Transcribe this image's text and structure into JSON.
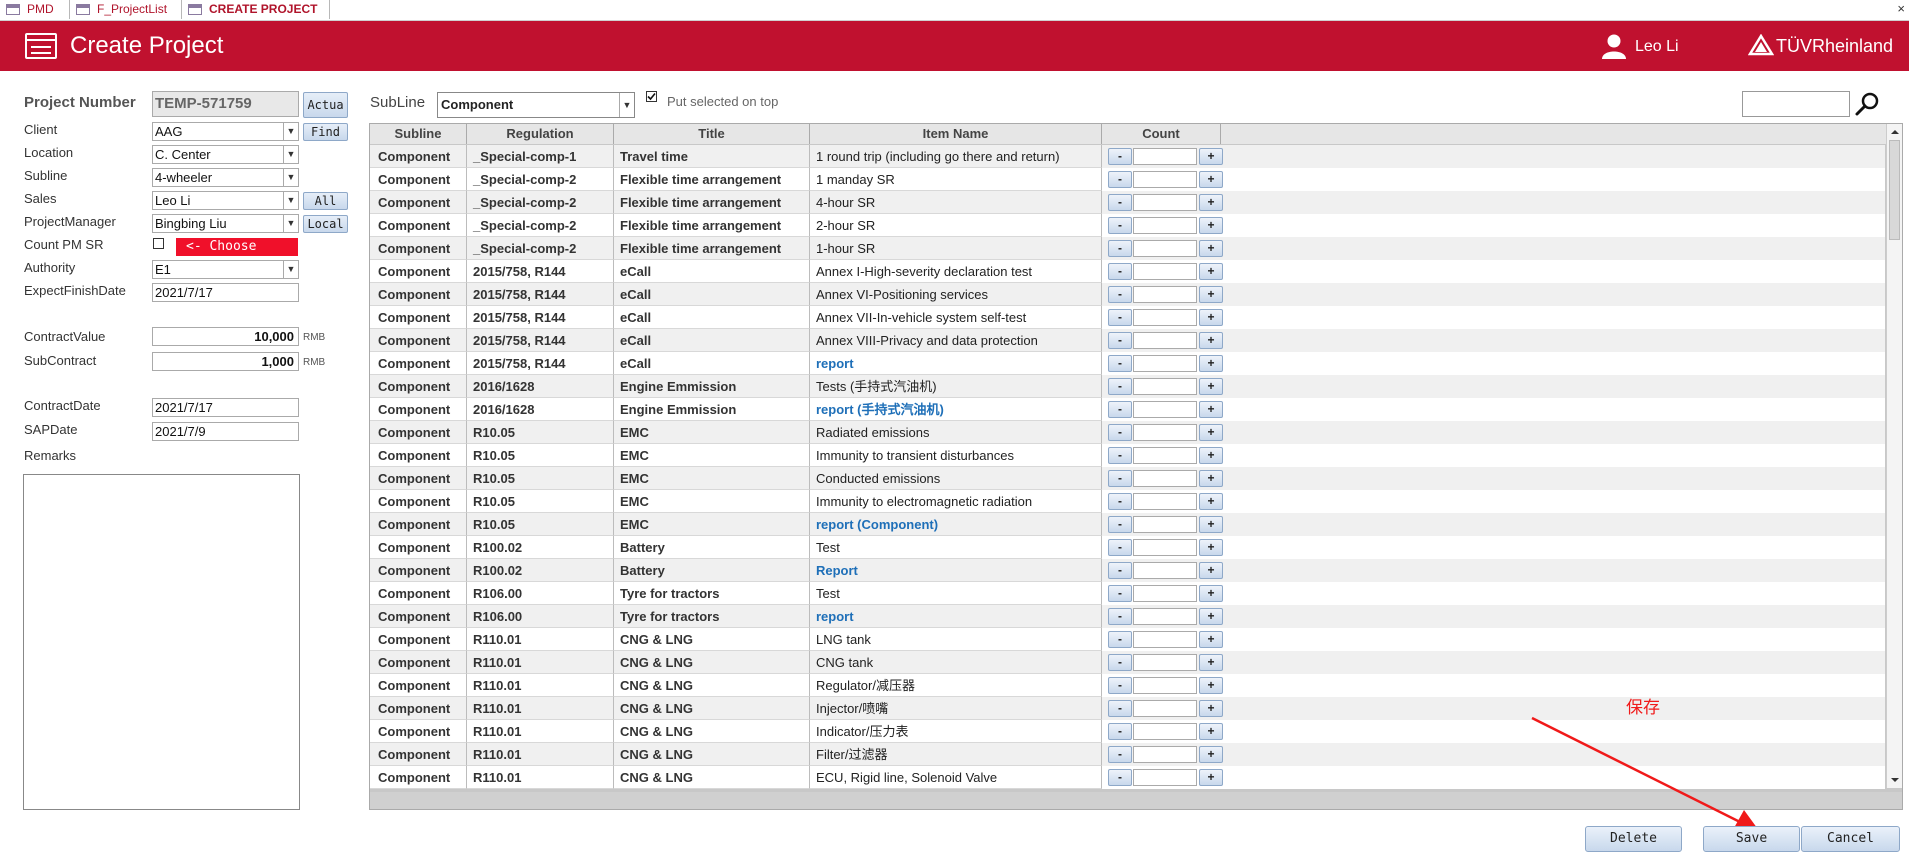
{
  "tabs": [
    {
      "label": "PMD"
    },
    {
      "label": "F_ProjectList"
    },
    {
      "label": "CREATE PROJECT"
    }
  ],
  "tab_close": "×",
  "header": {
    "title": "Create Project",
    "user_name": "Leo Li",
    "brand": "TÜVRheinland",
    "background_color": "#c0112f"
  },
  "form": {
    "project_number_label": "Project Number",
    "project_number_value": "TEMP-571759",
    "actual_button": "Actua",
    "client_label": "Client",
    "client_value": "AAG",
    "find_button": "Find",
    "location_label": "Location",
    "location_value": "C. Center",
    "subline_label": "Subline",
    "subline_value": "4-wheeler",
    "sales_label": "Sales",
    "sales_value": "Leo Li",
    "all_button": "All",
    "pm_label": "ProjectManager",
    "pm_value": "Bingbing Liu",
    "local_button": "Local",
    "count_pm_sr_label": "Count PM SR",
    "choose_hint": "<- Choose",
    "authority_label": "Authority",
    "authority_value": "E1",
    "expect_finish_label": "ExpectFinishDate",
    "expect_finish_value": "2021/7/17",
    "contract_value_label": "ContractValue",
    "contract_value": "10,000",
    "contract_unit": "RMB",
    "subcontract_label": "SubContract",
    "subcontract_value": "1,000",
    "subcontract_unit": "RMB",
    "contract_date_label": "ContractDate",
    "contract_date_value": "2021/7/17",
    "sap_date_label": "SAPDate",
    "sap_date_value": "2021/7/9",
    "remarks_label": "Remarks"
  },
  "filter": {
    "subline_label": "SubLine",
    "subline_value": "Component",
    "put_selected_label": "Put selected on top",
    "put_selected_checked": true
  },
  "table": {
    "columns": [
      "Subline",
      "Regulation",
      "Title",
      "Item Name",
      "Count"
    ],
    "minus": "-",
    "plus": "+",
    "rows": [
      {
        "subline": "Component",
        "regulation": "_Special-comp-1",
        "title": "Travel time",
        "item": "1 round trip (including go there and return)",
        "link": false
      },
      {
        "subline": "Component",
        "regulation": "_Special-comp-2",
        "title": "Flexible time arrangement",
        "item": "1 manday SR",
        "link": false
      },
      {
        "subline": "Component",
        "regulation": "_Special-comp-2",
        "title": "Flexible time arrangement",
        "item": "4-hour SR",
        "link": false
      },
      {
        "subline": "Component",
        "regulation": "_Special-comp-2",
        "title": "Flexible time arrangement",
        "item": "2-hour SR",
        "link": false
      },
      {
        "subline": "Component",
        "regulation": "_Special-comp-2",
        "title": "Flexible time arrangement",
        "item": "1-hour SR",
        "link": false
      },
      {
        "subline": "Component",
        "regulation": "2015/758, R144",
        "title": "eCall",
        "item": "Annex I-High-severity declaration test",
        "link": false
      },
      {
        "subline": "Component",
        "regulation": "2015/758, R144",
        "title": "eCall",
        "item": "Annex VI-Positioning services",
        "link": false
      },
      {
        "subline": "Component",
        "regulation": "2015/758, R144",
        "title": "eCall",
        "item": "Annex VII-In-vehicle system self-test",
        "link": false
      },
      {
        "subline": "Component",
        "regulation": "2015/758, R144",
        "title": "eCall",
        "item": "Annex VIII-Privacy and data protection",
        "link": false
      },
      {
        "subline": "Component",
        "regulation": "2015/758, R144",
        "title": "eCall",
        "item": "report",
        "link": true
      },
      {
        "subline": "Component",
        "regulation": "2016/1628",
        "title": "Engine Emmission",
        "item": "Tests (手持式汽油机)",
        "link": false
      },
      {
        "subline": "Component",
        "regulation": "2016/1628",
        "title": "Engine Emmission",
        "item": "report (手持式汽油机)",
        "link": true
      },
      {
        "subline": "Component",
        "regulation": "R10.05",
        "title": "EMC",
        "item": "Radiated emissions",
        "link": false
      },
      {
        "subline": "Component",
        "regulation": "R10.05",
        "title": "EMC",
        "item": "Immunity to transient disturbances",
        "link": false
      },
      {
        "subline": "Component",
        "regulation": "R10.05",
        "title": "EMC",
        "item": "Conducted emissions",
        "link": false
      },
      {
        "subline": "Component",
        "regulation": "R10.05",
        "title": "EMC",
        "item": "Immunity to electromagnetic radiation",
        "link": false
      },
      {
        "subline": "Component",
        "regulation": "R10.05",
        "title": "EMC",
        "item": "report (Component)",
        "link": true
      },
      {
        "subline": "Component",
        "regulation": "R100.02",
        "title": "Battery",
        "item": "Test",
        "link": false
      },
      {
        "subline": "Component",
        "regulation": "R100.02",
        "title": "Battery",
        "item": "Report",
        "link": true
      },
      {
        "subline": "Component",
        "regulation": "R106.00",
        "title": "Tyre for tractors",
        "item": "Test",
        "link": false
      },
      {
        "subline": "Component",
        "regulation": "R106.00",
        "title": "Tyre for tractors",
        "item": "report",
        "link": true
      },
      {
        "subline": "Component",
        "regulation": "R110.01",
        "title": "CNG & LNG",
        "item": "LNG tank",
        "link": false
      },
      {
        "subline": "Component",
        "regulation": "R110.01",
        "title": "CNG & LNG",
        "item": "CNG tank",
        "link": false
      },
      {
        "subline": "Component",
        "regulation": "R110.01",
        "title": "CNG & LNG",
        "item": "Regulator/减压器",
        "link": false
      },
      {
        "subline": "Component",
        "regulation": "R110.01",
        "title": "CNG & LNG",
        "item": "Injector/喷嘴",
        "link": false
      },
      {
        "subline": "Component",
        "regulation": "R110.01",
        "title": "CNG & LNG",
        "item": "Indicator/压力表",
        "link": false
      },
      {
        "subline": "Component",
        "regulation": "R110.01",
        "title": "CNG & LNG",
        "item": "Filter/过滤器",
        "link": false
      },
      {
        "subline": "Component",
        "regulation": "R110.01",
        "title": "CNG & LNG",
        "item": "ECU, Rigid line, Solenoid Valve",
        "link": false
      }
    ]
  },
  "buttons": {
    "delete": "Delete",
    "save": "Save",
    "cancel": "Cancel"
  },
  "annotation": {
    "text": "保存",
    "color": "#f01a1a"
  }
}
